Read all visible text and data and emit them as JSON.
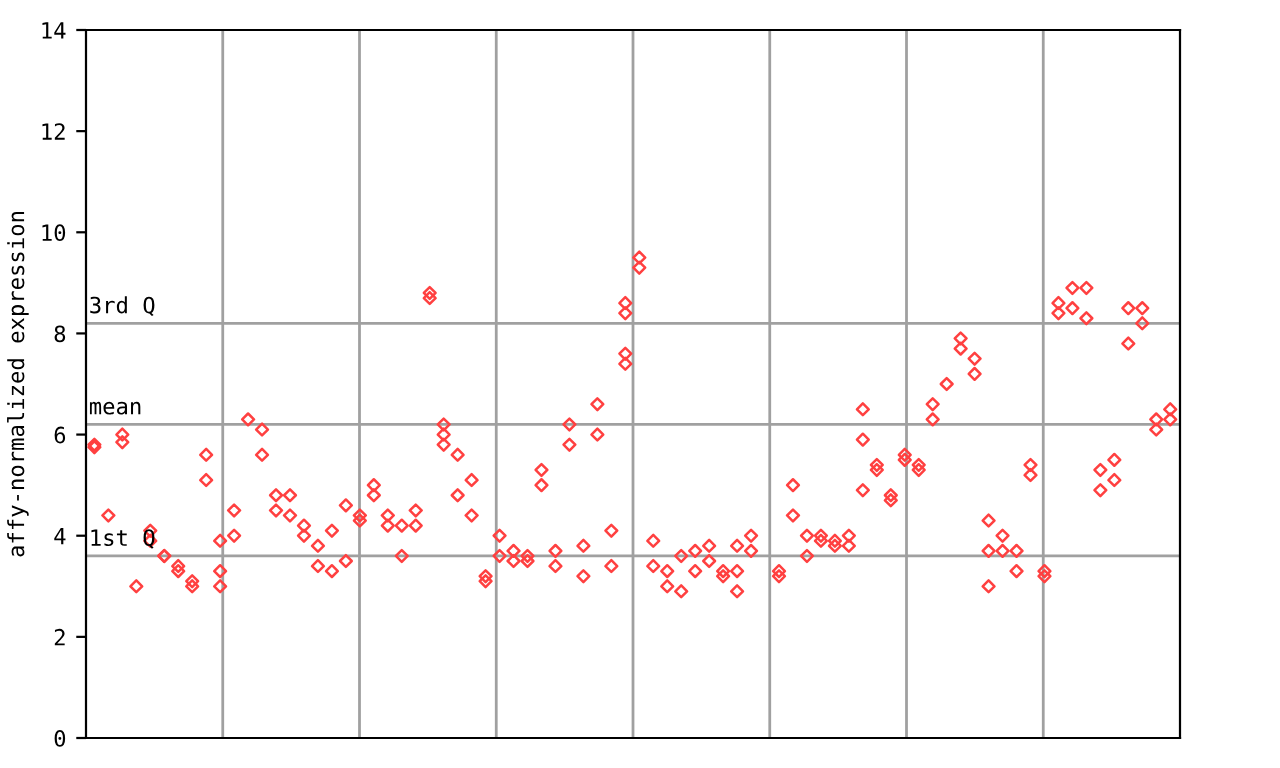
{
  "chart_data": {
    "type": "scatter",
    "ylabel": "affy-normalized expression",
    "categories": [
      null,
      null,
      null,
      null,
      null,
      null,
      null,
      null,
      null,
      null,
      null,
      null,
      null,
      null,
      null,
      null,
      null,
      null,
      null,
      null,
      null,
      null,
      null,
      null,
      null,
      null,
      null,
      null,
      null,
      null,
      null,
      null,
      null,
      null,
      null,
      null,
      null,
      null,
      null,
      null,
      null,
      null,
      null,
      null,
      null,
      null,
      null,
      null,
      null,
      null,
      null,
      null,
      null,
      null,
      null,
      null,
      null,
      null,
      null,
      null,
      null,
      null,
      null,
      null,
      null,
      null,
      null,
      null,
      null,
      null,
      null,
      null,
      null,
      null,
      null,
      null,
      null,
      null
    ],
    "ylim": [
      0,
      14
    ],
    "yticks": [
      0,
      2,
      4,
      6,
      8,
      10,
      12,
      14
    ],
    "marker": "diamond",
    "tick_labels": "y",
    "ref_lines": [
      {
        "axis": "y",
        "value": 8.2,
        "label": "3rd Q",
        "color": "#a0a0a0"
      },
      {
        "axis": "y",
        "value": 6.2,
        "label": "mean",
        "color": "#a0a0a0"
      },
      {
        "axis": "y",
        "value": 3.6,
        "label": "1st Q",
        "color": "#a0a0a0"
      }
    ],
    "grid": "x",
    "series": [
      {
        "color": "#ff4040",
        "values": [
          5.8,
          4.4,
          6.0,
          3.0,
          4.1,
          3.6,
          3.4,
          3.1,
          5.6,
          3.3,
          4.5,
          6.3,
          6.1,
          4.8,
          4.8,
          4.2,
          3.8,
          3.3,
          4.6,
          4.4,
          5.0,
          4.4,
          4.2,
          4.5,
          8.8,
          6.2,
          5.6,
          5.1,
          3.2,
          4.0,
          3.7,
          3.6,
          5.3,
          3.7,
          6.2,
          3.8,
          6.6,
          4.1,
          8.6,
          9.5,
          3.9,
          3.3,
          3.6,
          3.7,
          3.8,
          3.3,
          3.8,
          4.0,
          null,
          3.2,
          5.0,
          4.0,
          4.0,
          3.9,
          4.0,
          6.5,
          5.4,
          4.8,
          5.6,
          5.4,
          6.6,
          7.0,
          7.9,
          7.5,
          4.3,
          4.0,
          3.7,
          5.4,
          3.3,
          8.6,
          8.9,
          8.9,
          5.3,
          5.5,
          8.5,
          8.5,
          6.3,
          6.5
        ]
      },
      {
        "color": "#ff4040",
        "values": [
          5.75,
          null,
          5.85,
          null,
          3.9,
          3.6,
          3.3,
          3.0,
          5.1,
          3.0,
          4.0,
          null,
          5.6,
          4.5,
          4.4,
          4.0,
          3.4,
          4.1,
          3.5,
          4.3,
          4.8,
          4.2,
          3.6,
          4.2,
          8.7,
          6.0,
          4.8,
          4.4,
          3.1,
          3.6,
          3.5,
          3.5,
          5.0,
          3.4,
          5.8,
          3.2,
          6.0,
          3.4,
          8.4,
          9.3,
          3.4,
          3.0,
          2.9,
          3.3,
          3.5,
          3.2,
          3.3,
          3.7,
          null,
          3.3,
          4.4,
          3.6,
          3.9,
          3.8,
          3.8,
          5.9,
          5.3,
          4.7,
          5.5,
          5.3,
          6.3,
          null,
          7.7,
          7.2,
          3.7,
          3.7,
          3.3,
          5.2,
          3.2,
          8.4,
          8.5,
          8.3,
          4.9,
          5.1,
          7.8,
          8.2,
          6.1,
          6.3
        ]
      },
      {
        "color": "#ff4040",
        "values": [
          null,
          null,
          null,
          null,
          null,
          null,
          null,
          null,
          null,
          3.9,
          null,
          null,
          null,
          null,
          null,
          null,
          null,
          null,
          null,
          null,
          null,
          null,
          null,
          null,
          null,
          5.8,
          null,
          null,
          null,
          null,
          null,
          null,
          null,
          null,
          null,
          null,
          null,
          null,
          7.6,
          null,
          null,
          null,
          null,
          null,
          null,
          null,
          2.9,
          null,
          null,
          null,
          null,
          null,
          null,
          null,
          null,
          4.9,
          null,
          null,
          null,
          null,
          null,
          null,
          null,
          null,
          3.0,
          null,
          null,
          null,
          null,
          null,
          null,
          null,
          null,
          null,
          null,
          null,
          null,
          null
        ]
      },
      {
        "color": "#ff4040",
        "values": [
          null,
          null,
          null,
          null,
          null,
          null,
          null,
          null,
          null,
          null,
          null,
          null,
          null,
          null,
          null,
          null,
          null,
          null,
          null,
          null,
          null,
          null,
          null,
          null,
          null,
          null,
          null,
          null,
          null,
          null,
          null,
          null,
          null,
          null,
          null,
          null,
          null,
          null,
          7.4,
          null,
          null,
          null,
          null,
          null,
          null,
          null,
          null,
          null,
          null,
          null,
          null,
          null,
          null,
          null,
          null,
          null,
          null,
          null,
          null,
          null,
          null,
          null,
          null,
          null,
          null,
          null,
          null,
          null,
          null,
          null,
          null,
          null,
          null,
          null,
          null,
          null,
          null,
          null
        ]
      }
    ]
  }
}
